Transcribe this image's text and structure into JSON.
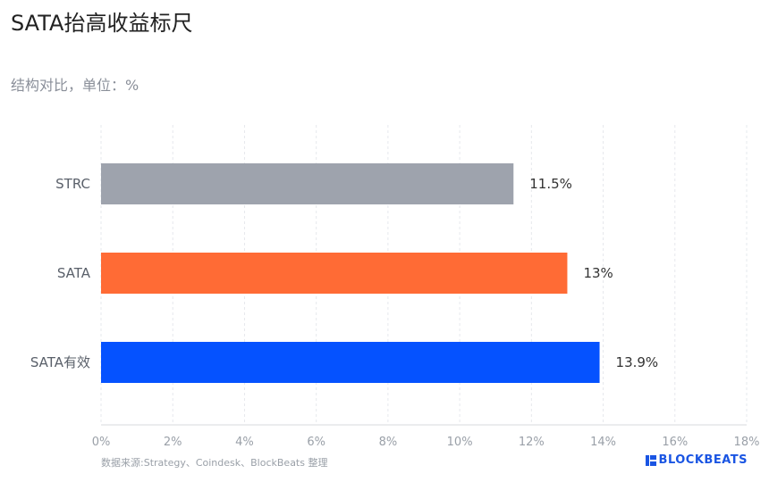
{
  "header": {
    "title": "SATA抬高收益标尺",
    "subtitle": "结构对比，单位：%"
  },
  "footer": {
    "source": "数据来源:Strategy、Coindesk、BlockBeats 整理",
    "brand": "BLOCKBEATS",
    "brand_icon": "blockbeats-logo-icon",
    "brand_color": "#1a55e3"
  },
  "chart_data": {
    "type": "bar",
    "orientation": "horizontal",
    "categories": [
      "STRC",
      "SATA",
      "SATA有效"
    ],
    "values": [
      11.5,
      13,
      13.9
    ],
    "value_labels": [
      "11.5%",
      "13%",
      "13.9%"
    ],
    "colors": [
      "#9ea3ad",
      "#ff6b35",
      "#0552ff"
    ],
    "xlim": [
      0,
      18
    ],
    "xticks": [
      0,
      2,
      4,
      6,
      8,
      10,
      12,
      14,
      16,
      18
    ],
    "xtick_labels": [
      "0%",
      "2%",
      "4%",
      "6%",
      "8%",
      "10%",
      "12%",
      "14%",
      "16%",
      "18%"
    ],
    "grid": true,
    "legend": "none"
  }
}
